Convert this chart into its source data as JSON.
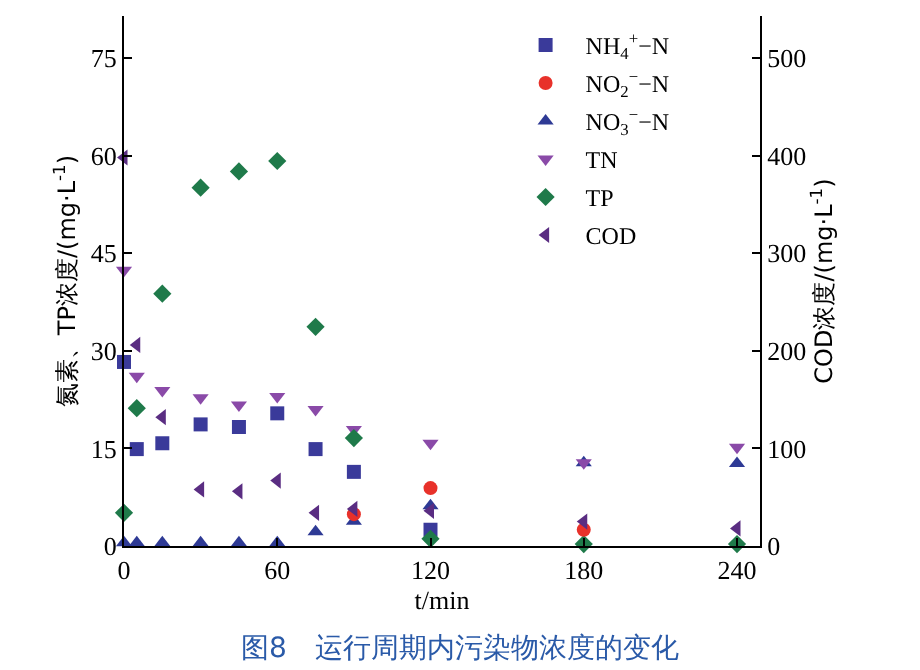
{
  "chart_data": {
    "type": "scatter",
    "title": "图8　运行周期内污染物浓度的变化",
    "xlabel": "t/min",
    "ylabel": "氮素、TP浓度/(mg·L$^{-1}$)",
    "y2label": "COD浓度/(mg·L$^{-1}$)",
    "x": [
      0,
      5,
      15,
      30,
      45,
      60,
      75,
      90,
      120,
      180,
      240
    ],
    "xlim": [
      0,
      249
    ],
    "xticks": [
      0,
      60,
      120,
      180,
      240
    ],
    "ylim": [
      0,
      81.5
    ],
    "yticks": [
      0,
      15,
      30,
      45,
      60,
      75
    ],
    "y2lim": [
      0,
      543
    ],
    "y2ticks": [
      0,
      100,
      200,
      300,
      400,
      500
    ],
    "legend": "top right",
    "series": [
      {
        "name": "NH$_{4}$$^{+}$−N",
        "color": "#3a3a9a",
        "marker": "square",
        "values": [
          28.3,
          14.9,
          15.8,
          18.7,
          18.3,
          20.4,
          14.9,
          11.4,
          2.5,
          null,
          null
        ]
      },
      {
        "name": "NO$_{2}$$^{−}$−N",
        "color": "#e8312a",
        "marker": "circle",
        "values": [
          null,
          null,
          null,
          null,
          null,
          null,
          null,
          4.9,
          8.9,
          2.5,
          null
        ]
      },
      {
        "name": "NO$_{3}$$^{−}$−N",
        "color": "#2e3a95",
        "marker": "triangle",
        "values": [
          0.5,
          0.5,
          0.5,
          0.5,
          0.5,
          0.5,
          2.2,
          3.8,
          6.2,
          12.8,
          12.7
        ]
      },
      {
        "name": "TN",
        "color": "#8a4aa8",
        "marker": "triangle-down",
        "values": [
          42.4,
          26.1,
          23.9,
          22.8,
          21.7,
          23.0,
          21.0,
          17.9,
          15.8,
          12.8,
          15.2
        ]
      },
      {
        "name": "TP",
        "color": "#1f7a4a",
        "marker": "diamond",
        "values": [
          5.1,
          21.2,
          38.8,
          55.1,
          57.6,
          59.2,
          33.7,
          16.6,
          1.1,
          0.3,
          0.3
        ]
      },
      {
        "name": "COD",
        "color": "#5a2d82",
        "marker": "triangle-left",
        "axis": "y2",
        "values": [
          398,
          206,
          132,
          58,
          56,
          67,
          34,
          38,
          36,
          25,
          18
        ]
      }
    ]
  }
}
